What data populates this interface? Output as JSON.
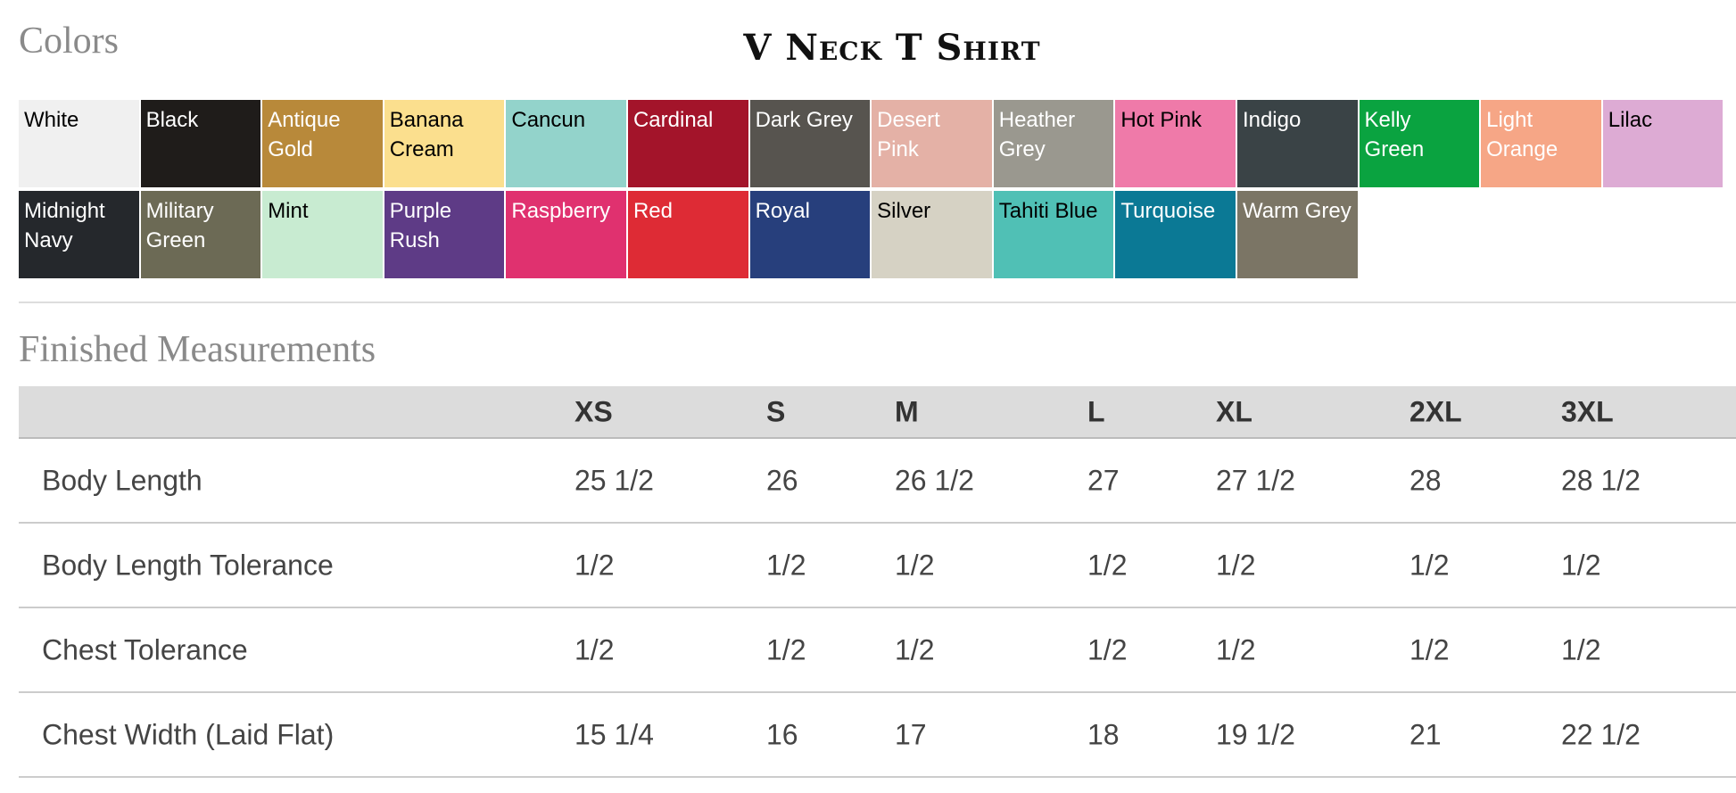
{
  "colors_heading": "Colors",
  "title": "V Neck T Shirt",
  "swatches": [
    {
      "name": "White",
      "bg": "#f0f0f0",
      "fg": "#000"
    },
    {
      "name": "Black",
      "bg": "#1f1c1a",
      "fg": "#fff"
    },
    {
      "name": "Antique Gold",
      "bg": "#b8893a",
      "fg": "#fff"
    },
    {
      "name": "Banana Cream",
      "bg": "#fbdf8e",
      "fg": "#000"
    },
    {
      "name": "Cancun",
      "bg": "#93d3cb",
      "fg": "#000"
    },
    {
      "name": "Cardinal",
      "bg": "#a3142a",
      "fg": "#fff"
    },
    {
      "name": "Dark Grey",
      "bg": "#57544f",
      "fg": "#fff"
    },
    {
      "name": "Desert Pink",
      "bg": "#e4b1a6",
      "fg": "#fff"
    },
    {
      "name": "Heather Grey",
      "bg": "#9a988f",
      "fg": "#fff"
    },
    {
      "name": "Hot Pink",
      "bg": "#ef7aa9",
      "fg": "#000"
    },
    {
      "name": "Indigo",
      "bg": "#3a4346",
      "fg": "#fff"
    },
    {
      "name": "Kelly Green",
      "bg": "#0aa340",
      "fg": "#fff"
    },
    {
      "name": "Light Orange",
      "bg": "#f6a686",
      "fg": "#fff"
    },
    {
      "name": "Lilac",
      "bg": "#ddabd4",
      "fg": "#000"
    },
    {
      "name": "Midnight Navy",
      "bg": "#25282c",
      "fg": "#fff"
    },
    {
      "name": "Military Green",
      "bg": "#6c6a55",
      "fg": "#fff"
    },
    {
      "name": "Mint",
      "bg": "#c8ebd1",
      "fg": "#000"
    },
    {
      "name": "Purple Rush",
      "bg": "#5e3b86",
      "fg": "#fff"
    },
    {
      "name": "Raspberry",
      "bg": "#e0316f",
      "fg": "#fff"
    },
    {
      "name": "Red",
      "bg": "#de2b35",
      "fg": "#fff"
    },
    {
      "name": "Royal",
      "bg": "#273f7c",
      "fg": "#fff"
    },
    {
      "name": "Silver",
      "bg": "#d6d2c4",
      "fg": "#000"
    },
    {
      "name": "Tahiti Blue",
      "bg": "#50c0b5",
      "fg": "#000"
    },
    {
      "name": "Turquoise",
      "bg": "#0b7995",
      "fg": "#fff"
    },
    {
      "name": "Warm Grey",
      "bg": "#7b7565",
      "fg": "#fff"
    }
  ],
  "measurements_heading": "Finished Measurements",
  "table": {
    "headers": [
      "",
      "XS",
      "S",
      "M",
      "L",
      "XL",
      "2XL",
      "3XL"
    ],
    "rows": [
      [
        "Body Length",
        "25 1/2",
        "26",
        "26 1/2",
        "27",
        "27 1/2",
        "28",
        "28 1/2"
      ],
      [
        "Body Length Tolerance",
        "1/2",
        "1/2",
        "1/2",
        "1/2",
        "1/2",
        "1/2",
        "1/2"
      ],
      [
        "Chest Tolerance",
        "1/2",
        "1/2",
        "1/2",
        "1/2",
        "1/2",
        "1/2",
        "1/2"
      ],
      [
        "Chest Width (Laid Flat)",
        "15 1/4",
        "16",
        "17",
        "18",
        "19 1/2",
        "21",
        "22 1/2"
      ]
    ]
  }
}
